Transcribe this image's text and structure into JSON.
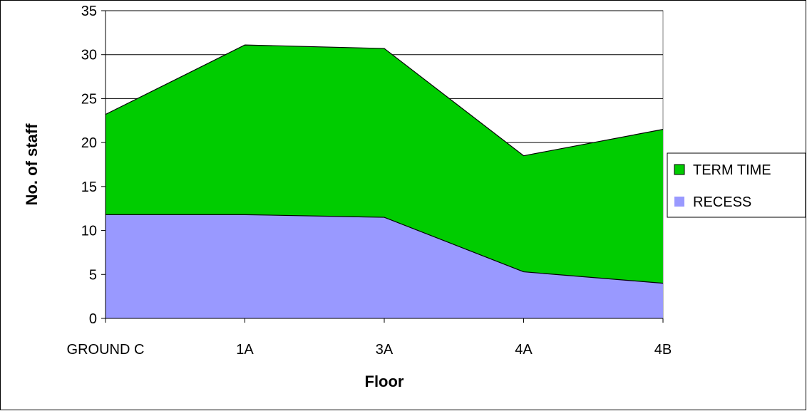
{
  "chart_data": {
    "type": "area",
    "stacked": true,
    "categories": [
      "GROUND C",
      "1A",
      "3A",
      "4A",
      "4B"
    ],
    "series": [
      {
        "name": "RECESS",
        "values": [
          11.8,
          11.8,
          11.5,
          5.3,
          4.0
        ],
        "color": "#9999ff"
      },
      {
        "name": "TERM TIME",
        "values": [
          11.4,
          19.3,
          19.2,
          13.2,
          17.5
        ],
        "color": "#00cc00"
      }
    ],
    "xlabel": "Floor",
    "ylabel": "No. of staff",
    "ylim": [
      0,
      35
    ],
    "yticks": [
      0,
      5,
      10,
      15,
      20,
      25,
      30,
      35
    ],
    "grid": true,
    "legend": {
      "placement": "right",
      "entries": [
        "TERM TIME",
        "RECESS"
      ]
    }
  }
}
